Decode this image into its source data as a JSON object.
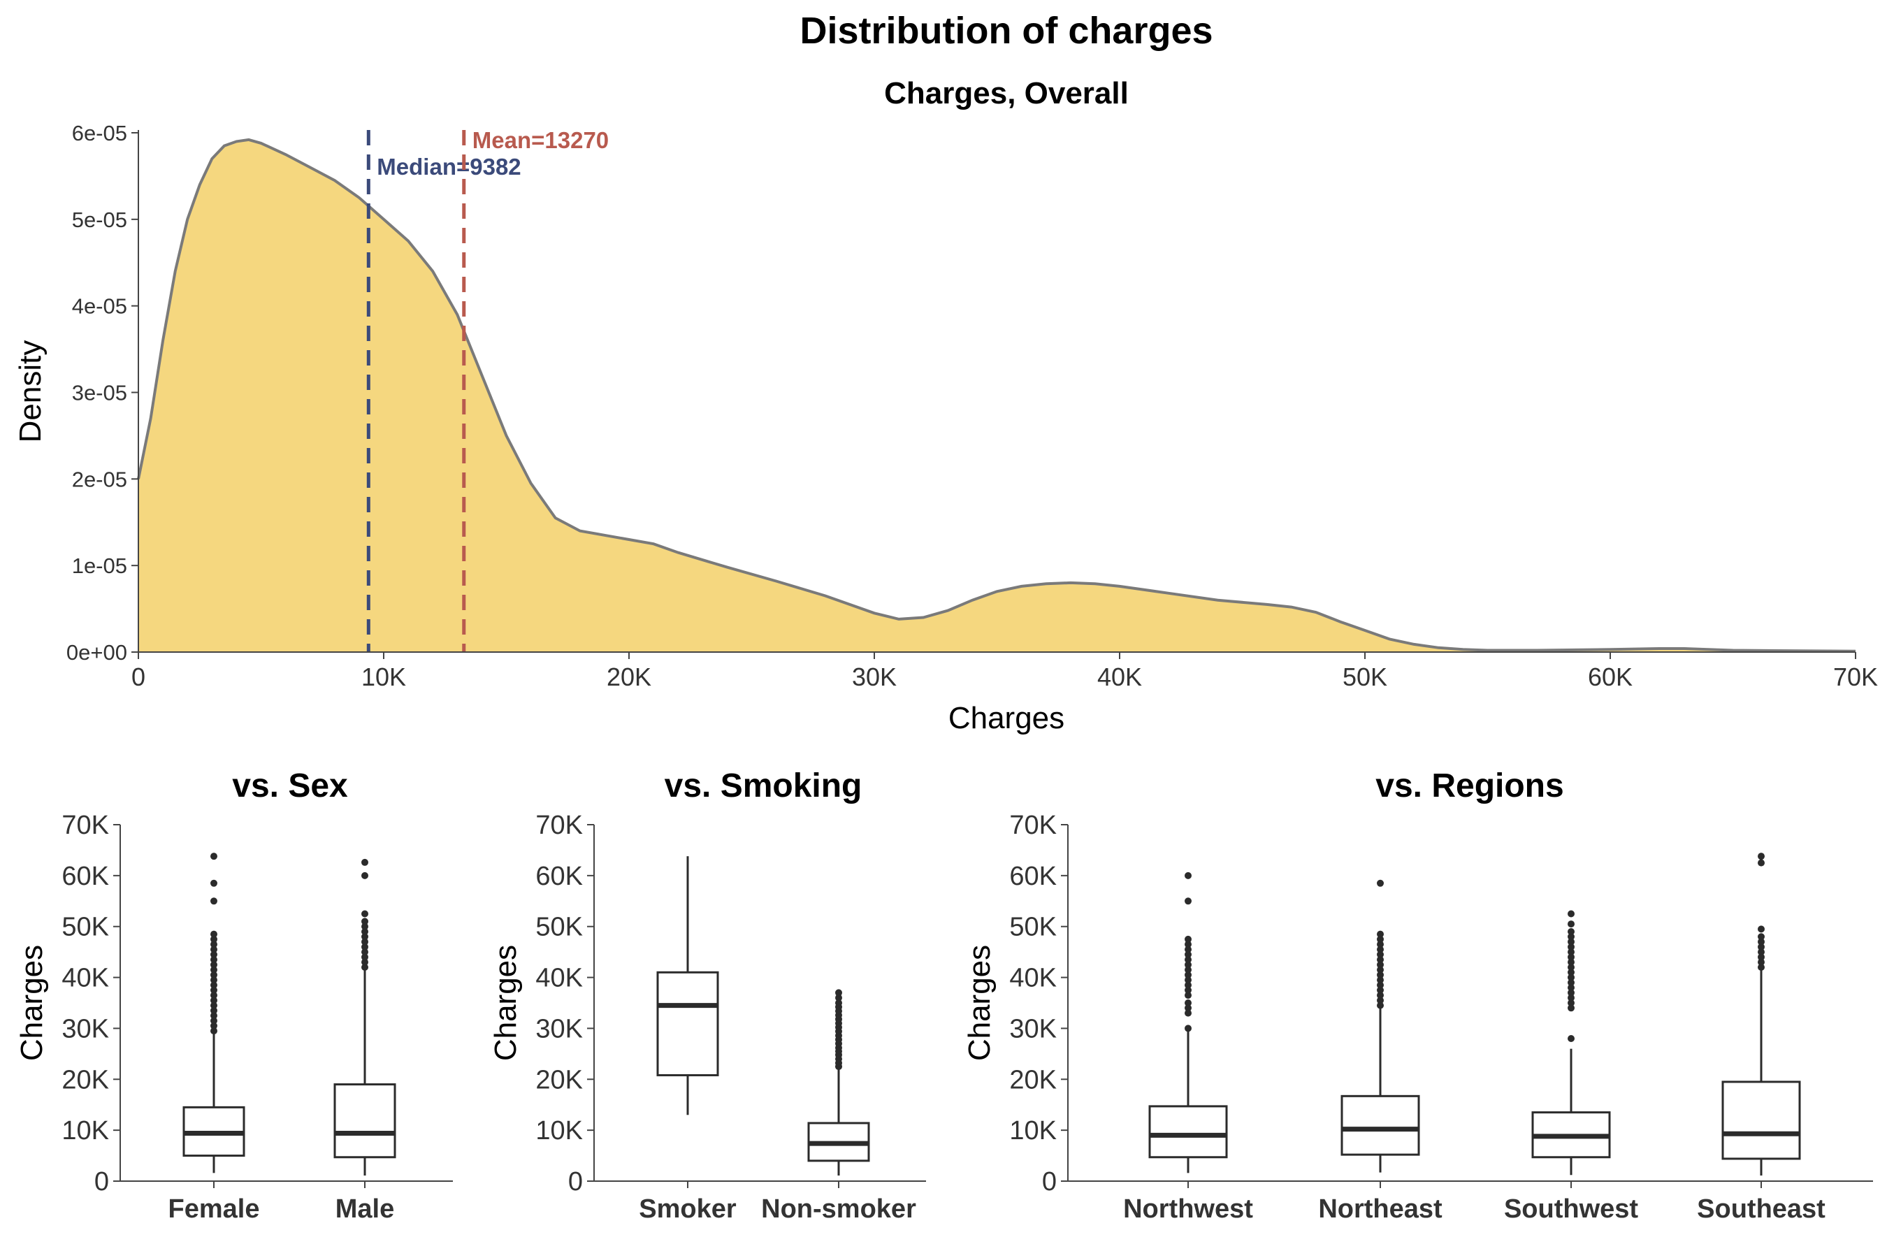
{
  "figure": {
    "title": "Distribution of charges"
  },
  "colors": {
    "density_fill": "#F5D77F",
    "density_stroke": "#7A7A7A",
    "median": "#3B4A7A",
    "mean": "#B85A4E",
    "axis": "#444444",
    "box": "#2B2B2B"
  },
  "chart_data": [
    {
      "id": "density",
      "type": "area",
      "title": "Charges, Overall",
      "xlabel": "Charges",
      "ylabel": "Density",
      "xlim": [
        0,
        70000
      ],
      "ylim": [
        0,
        6e-05
      ],
      "x_ticks": [
        0,
        10000,
        20000,
        30000,
        40000,
        50000,
        60000,
        70000
      ],
      "x_tick_labels": [
        "0",
        "10K",
        "20K",
        "30K",
        "40K",
        "50K",
        "60K",
        "70K"
      ],
      "y_ticks": [
        0,
        1e-05,
        2e-05,
        3e-05,
        4e-05,
        5e-05,
        6e-05
      ],
      "y_tick_labels": [
        "0e+00",
        "1e-05",
        "2e-05",
        "3e-05",
        "4e-05",
        "5e-05",
        "6e-05"
      ],
      "grid": false,
      "legend": "none",
      "series": [
        {
          "x": [
            0,
            500,
            1000,
            1500,
            2000,
            2500,
            3000,
            3500,
            4000,
            4500,
            5000,
            6000,
            7000,
            8000,
            9000,
            10000,
            11000,
            12000,
            13000,
            14000,
            15000,
            16000,
            17000,
            18000,
            19000,
            20000,
            21000,
            22000,
            24000,
            26000,
            28000,
            30000,
            31000,
            32000,
            33000,
            34000,
            35000,
            36000,
            37000,
            38000,
            39000,
            40000,
            42000,
            44000,
            46000,
            47000,
            48000,
            49000,
            50000,
            51000,
            52000,
            53000,
            54000,
            55000,
            57000,
            60000,
            62000,
            63000,
            65000,
            70000
          ],
          "y": [
            2e-05,
            2.7e-05,
            3.6e-05,
            4.4e-05,
            5e-05,
            5.4e-05,
            5.7e-05,
            5.85e-05,
            5.9e-05,
            5.92e-05,
            5.88e-05,
            5.75e-05,
            5.6e-05,
            5.45e-05,
            5.25e-05,
            5e-05,
            4.75e-05,
            4.4e-05,
            3.9e-05,
            3.2e-05,
            2.5e-05,
            1.95e-05,
            1.55e-05,
            1.4e-05,
            1.35e-05,
            1.3e-05,
            1.25e-05,
            1.15e-05,
            9.8e-06,
            8.2e-06,
            6.5e-06,
            4.5e-06,
            3.8e-06,
            4e-06,
            4.8e-06,
            6e-06,
            7e-06,
            7.6e-06,
            7.9e-06,
            8e-06,
            7.9e-06,
            7.6e-06,
            6.8e-06,
            6e-06,
            5.5e-06,
            5.2e-06,
            4.6e-06,
            3.5e-06,
            2.5e-06,
            1.5e-06,
            9e-07,
            5e-07,
            3e-07,
            2e-07,
            2e-07,
            3e-07,
            4e-07,
            4e-07,
            2e-07,
            1e-07
          ]
        }
      ],
      "annotations": [
        {
          "label": "Median=9382",
          "x": 9382,
          "color_key": "median"
        },
        {
          "label": "Mean=13270",
          "x": 13270,
          "color_key": "mean"
        }
      ]
    },
    {
      "id": "sex",
      "type": "box",
      "title": "vs. Sex",
      "ylabel": "Charges",
      "ylim": [
        0,
        70000
      ],
      "y_ticks": [
        0,
        10000,
        20000,
        30000,
        40000,
        50000,
        60000,
        70000
      ],
      "y_tick_labels": [
        "0",
        "10K",
        "20K",
        "30K",
        "40K",
        "50K",
        "60K",
        "70K"
      ],
      "categories": [
        "Female",
        "Male"
      ],
      "boxes": [
        {
          "q1": 5000,
          "median": 9400,
          "q3": 14500,
          "lower": 1600,
          "upper": 29000,
          "outliers": [
            29500,
            30500,
            31500,
            32500,
            33500,
            34500,
            35500,
            36500,
            37500,
            38500,
            39500,
            40500,
            41500,
            42500,
            43500,
            44500,
            45500,
            46500,
            47500,
            48500,
            55000,
            58500,
            63800
          ]
        },
        {
          "q1": 4700,
          "median": 9400,
          "q3": 19000,
          "lower": 1100,
          "upper": 41500,
          "outliers": [
            42000,
            43000,
            44000,
            45000,
            46000,
            47000,
            48000,
            49000,
            50000,
            51000,
            52500,
            60000,
            62600
          ]
        }
      ]
    },
    {
      "id": "smoking",
      "type": "box",
      "title": "vs. Smoking",
      "ylabel": "Charges",
      "ylim": [
        0,
        70000
      ],
      "y_ticks": [
        0,
        10000,
        20000,
        30000,
        40000,
        50000,
        60000,
        70000
      ],
      "y_tick_labels": [
        "0",
        "10K",
        "20K",
        "30K",
        "40K",
        "50K",
        "60K",
        "70K"
      ],
      "categories": [
        "Smoker",
        "Non-smoker"
      ],
      "boxes": [
        {
          "q1": 20800,
          "median": 34500,
          "q3": 41000,
          "lower": 13000,
          "upper": 63800,
          "outliers": []
        },
        {
          "q1": 4000,
          "median": 7400,
          "q3": 11400,
          "lower": 1100,
          "upper": 22000,
          "outliers": [
            22500,
            23200,
            24000,
            24800,
            25500,
            26200,
            27000,
            27800,
            28600,
            29400,
            30200,
            31000,
            31800,
            32600,
            33400,
            34200,
            35000,
            36000,
            37000
          ]
        }
      ]
    },
    {
      "id": "regions",
      "type": "box",
      "title": "vs. Regions",
      "ylabel": "Charges",
      "ylim": [
        0,
        70000
      ],
      "y_ticks": [
        0,
        10000,
        20000,
        30000,
        40000,
        50000,
        60000,
        70000
      ],
      "y_tick_labels": [
        "0",
        "10K",
        "20K",
        "30K",
        "40K",
        "50K",
        "60K",
        "70K"
      ],
      "categories": [
        "Northwest",
        "Northeast",
        "Southwest",
        "Southeast"
      ],
      "boxes": [
        {
          "q1": 4700,
          "median": 9000,
          "q3": 14700,
          "lower": 1600,
          "upper": 29500,
          "outliers": [
            30000,
            33000,
            34000,
            35000,
            36500,
            37500,
            38500,
            39500,
            40500,
            41500,
            42500,
            43500,
            44500,
            45500,
            46500,
            47500,
            55000,
            60000
          ]
        },
        {
          "q1": 5200,
          "median": 10200,
          "q3": 16700,
          "lower": 1700,
          "upper": 34000,
          "outliers": [
            34500,
            35500,
            36500,
            37500,
            38500,
            39500,
            40500,
            41500,
            42500,
            43500,
            44500,
            45500,
            46500,
            47500,
            48500,
            58500
          ]
        },
        {
          "q1": 4700,
          "median": 8800,
          "q3": 13500,
          "lower": 1200,
          "upper": 26000,
          "outliers": [
            28000,
            34000,
            35000,
            36000,
            37000,
            38000,
            39000,
            40000,
            41000,
            42000,
            43000,
            44000,
            45000,
            46000,
            47000,
            48000,
            49000,
            50500,
            52500
          ]
        },
        {
          "q1": 4400,
          "median": 9300,
          "q3": 19500,
          "lower": 1100,
          "upper": 41500,
          "outliers": [
            42000,
            43000,
            44000,
            45000,
            46000,
            47000,
            48000,
            49500,
            62500,
            63800
          ]
        }
      ]
    }
  ]
}
